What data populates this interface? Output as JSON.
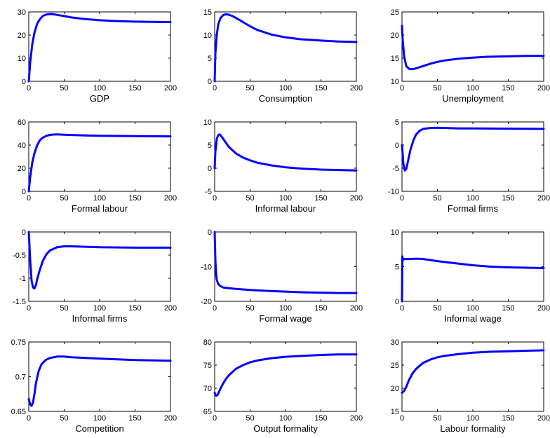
{
  "line_color": "#0000ff",
  "chart_data": [
    {
      "type": "line",
      "xlabel": "GDP",
      "xlim": [
        0,
        200
      ],
      "ylim": [
        0,
        30
      ],
      "xticks": [
        "0",
        "50",
        "100",
        "150",
        "200"
      ],
      "yticks": [
        "0",
        "10",
        "20",
        "30"
      ],
      "series": [
        {
          "x": [
            0,
            2,
            5,
            8,
            12,
            16,
            20,
            25,
            30,
            35,
            40,
            50,
            60,
            80,
            100,
            120,
            150,
            175,
            200
          ],
          "y": [
            0,
            8,
            16,
            21,
            25,
            27,
            28.3,
            28.9,
            29.1,
            29,
            28.7,
            28.2,
            27.6,
            26.9,
            26.4,
            26.1,
            25.8,
            25.7,
            25.6
          ]
        }
      ]
    },
    {
      "type": "line",
      "xlabel": "Consumption",
      "xlim": [
        0,
        200
      ],
      "ylim": [
        0,
        15
      ],
      "xticks": [
        "0",
        "50",
        "100",
        "150",
        "200"
      ],
      "yticks": [
        "0",
        "5",
        "10",
        "15"
      ],
      "series": [
        {
          "x": [
            0,
            1,
            3,
            5,
            8,
            12,
            16,
            20,
            25,
            30,
            40,
            50,
            60,
            80,
            100,
            120,
            150,
            175,
            200
          ],
          "y": [
            0,
            6,
            10,
            12.3,
            13.6,
            14.3,
            14.5,
            14.4,
            14.1,
            13.7,
            12.8,
            11.9,
            11.1,
            10.1,
            9.5,
            9.1,
            8.8,
            8.6,
            8.5
          ]
        }
      ]
    },
    {
      "type": "line",
      "xlabel": "Unemployment",
      "xlim": [
        0,
        200
      ],
      "ylim": [
        10,
        25
      ],
      "xticks": [
        "0",
        "50",
        "100",
        "150",
        "200"
      ],
      "yticks": [
        "10",
        "15",
        "20",
        "25"
      ],
      "series": [
        {
          "x": [
            0,
            1,
            3,
            6,
            10,
            15,
            20,
            30,
            40,
            50,
            60,
            80,
            100,
            120,
            150,
            175,
            200
          ],
          "y": [
            22,
            19,
            15.5,
            13.3,
            12.7,
            12.6,
            12.8,
            13.3,
            13.8,
            14.2,
            14.5,
            14.9,
            15.1,
            15.3,
            15.4,
            15.5,
            15.5
          ]
        }
      ]
    },
    {
      "type": "line",
      "xlabel": "Formal labour",
      "xlim": [
        0,
        200
      ],
      "ylim": [
        0,
        60
      ],
      "xticks": [
        "0",
        "50",
        "100",
        "150",
        "200"
      ],
      "yticks": [
        "0",
        "20",
        "40",
        "60"
      ],
      "series": [
        {
          "x": [
            0,
            2,
            5,
            8,
            12,
            16,
            20,
            25,
            30,
            35,
            40,
            50,
            60,
            80,
            100,
            150,
            200
          ],
          "y": [
            0,
            12,
            25,
            33,
            40,
            44.5,
            46.5,
            48,
            48.8,
            49.1,
            49.2,
            49,
            48.7,
            48.3,
            48,
            47.7,
            47.5
          ]
        }
      ]
    },
    {
      "type": "line",
      "xlabel": "Informal labour",
      "xlim": [
        0,
        200
      ],
      "ylim": [
        -5,
        10
      ],
      "xticks": [
        "0",
        "50",
        "100",
        "150",
        "200"
      ],
      "yticks": [
        "-5",
        "0",
        "5",
        "10"
      ],
      "series": [
        {
          "x": [
            0,
            1,
            3,
            5,
            7,
            10,
            15,
            20,
            30,
            40,
            50,
            60,
            80,
            100,
            125,
            150,
            175,
            200
          ],
          "y": [
            0,
            3.5,
            6.3,
            7.2,
            7.3,
            6.8,
            5.7,
            4.6,
            3.2,
            2.3,
            1.7,
            1.2,
            0.6,
            0.2,
            -0.1,
            -0.3,
            -0.4,
            -0.5
          ]
        }
      ]
    },
    {
      "type": "line",
      "xlabel": "Formal firms",
      "xlim": [
        0,
        200
      ],
      "ylim": [
        -10,
        5
      ],
      "xticks": [
        "0",
        "50",
        "100",
        "150",
        "200"
      ],
      "yticks": [
        "-10",
        "-5",
        "0",
        "5"
      ],
      "series": [
        {
          "x": [
            0,
            2,
            4,
            6,
            8,
            12,
            16,
            20,
            25,
            30,
            40,
            50,
            60,
            80,
            100,
            150,
            200
          ],
          "y": [
            0,
            -4,
            -5.5,
            -5.2,
            -3.8,
            -1,
            1,
            2.3,
            3.1,
            3.5,
            3.7,
            3.75,
            3.7,
            3.6,
            3.6,
            3.55,
            3.5
          ]
        }
      ]
    },
    {
      "type": "line",
      "xlabel": "Informal firms",
      "xlim": [
        0,
        200
      ],
      "ylim": [
        -1.5,
        0
      ],
      "xticks": [
        "0",
        "50",
        "100",
        "150",
        "200"
      ],
      "yticks": [
        "-1.5",
        "-1",
        "-0.5",
        "0"
      ],
      "series": [
        {
          "x": [
            0,
            2,
            4,
            6,
            8,
            10,
            12,
            15,
            20,
            25,
            30,
            40,
            50,
            60,
            80,
            100,
            150,
            200
          ],
          "y": [
            0,
            -0.6,
            -1.05,
            -1.2,
            -1.22,
            -1.15,
            -1.02,
            -0.85,
            -0.62,
            -0.48,
            -0.4,
            -0.33,
            -0.31,
            -0.31,
            -0.32,
            -0.33,
            -0.34,
            -0.34
          ]
        }
      ]
    },
    {
      "type": "line",
      "xlabel": "Formal wage",
      "xlim": [
        0,
        200
      ],
      "ylim": [
        -20,
        0
      ],
      "xticks": [
        "0",
        "50",
        "100",
        "150",
        "200"
      ],
      "yticks": [
        "-20",
        "-10",
        "0"
      ],
      "series": [
        {
          "x": [
            0,
            1,
            2,
            3,
            5,
            8,
            12,
            20,
            30,
            50,
            75,
            100,
            125,
            150,
            175,
            200
          ],
          "y": [
            0,
            -8,
            -12,
            -13.8,
            -15,
            -15.6,
            -16,
            -16.2,
            -16.4,
            -16.7,
            -17,
            -17.2,
            -17.4,
            -17.5,
            -17.6,
            -17.6
          ]
        }
      ]
    },
    {
      "type": "line",
      "xlabel": "Informal wage",
      "xlim": [
        0,
        200
      ],
      "ylim": [
        0,
        10
      ],
      "xticks": [
        "0",
        "50",
        "100",
        "150",
        "200"
      ],
      "yticks": [
        "0",
        "5",
        "10"
      ],
      "series": [
        {
          "x": [
            0,
            0.5,
            1,
            2,
            3,
            5,
            10,
            20,
            30,
            50,
            75,
            100,
            125,
            150,
            175,
            200
          ],
          "y": [
            0,
            6.5,
            6.2,
            6,
            6.1,
            6.1,
            6.1,
            6.15,
            6.1,
            5.8,
            5.5,
            5.2,
            5,
            4.9,
            4.85,
            4.8
          ]
        }
      ]
    },
    {
      "type": "line",
      "xlabel": "Competition",
      "xlim": [
        0,
        200
      ],
      "ylim": [
        0.65,
        0.75
      ],
      "xticks": [
        "0",
        "50",
        "100",
        "150",
        "200"
      ],
      "yticks": [
        "0.65",
        "0.7",
        "0.75"
      ],
      "series": [
        {
          "x": [
            0,
            2,
            4,
            6,
            8,
            10,
            14,
            18,
            24,
            30,
            40,
            50,
            60,
            80,
            100,
            150,
            200
          ],
          "y": [
            0.668,
            0.66,
            0.658,
            0.663,
            0.675,
            0.69,
            0.708,
            0.718,
            0.724,
            0.727,
            0.729,
            0.729,
            0.728,
            0.727,
            0.726,
            0.724,
            0.723
          ]
        }
      ]
    },
    {
      "type": "line",
      "xlabel": "Output formality",
      "xlim": [
        0,
        200
      ],
      "ylim": [
        65,
        80
      ],
      "xticks": [
        "0",
        "50",
        "100",
        "150",
        "200"
      ],
      "yticks": [
        "65",
        "70",
        "75",
        "80"
      ],
      "series": [
        {
          "x": [
            0,
            2,
            4,
            6,
            10,
            15,
            20,
            30,
            40,
            50,
            60,
            80,
            100,
            125,
            150,
            175,
            200
          ],
          "y": [
            69,
            68.4,
            68.5,
            69.2,
            70.5,
            71.8,
            72.8,
            74.2,
            75,
            75.6,
            76,
            76.5,
            76.8,
            77,
            77.2,
            77.3,
            77.3
          ]
        }
      ]
    },
    {
      "type": "line",
      "xlabel": "Labour formality",
      "xlim": [
        0,
        200
      ],
      "ylim": [
        15,
        30
      ],
      "xticks": [
        "0",
        "50",
        "100",
        "150",
        "200"
      ],
      "yticks": [
        "15",
        "20",
        "25",
        "30"
      ],
      "series": [
        {
          "x": [
            0,
            3,
            6,
            10,
            15,
            20,
            30,
            40,
            50,
            60,
            80,
            100,
            125,
            150,
            175,
            200
          ],
          "y": [
            19,
            19.4,
            20.3,
            21.8,
            23.2,
            24.2,
            25.5,
            26.2,
            26.7,
            27,
            27.4,
            27.7,
            27.9,
            28,
            28.1,
            28.2
          ]
        }
      ]
    }
  ]
}
